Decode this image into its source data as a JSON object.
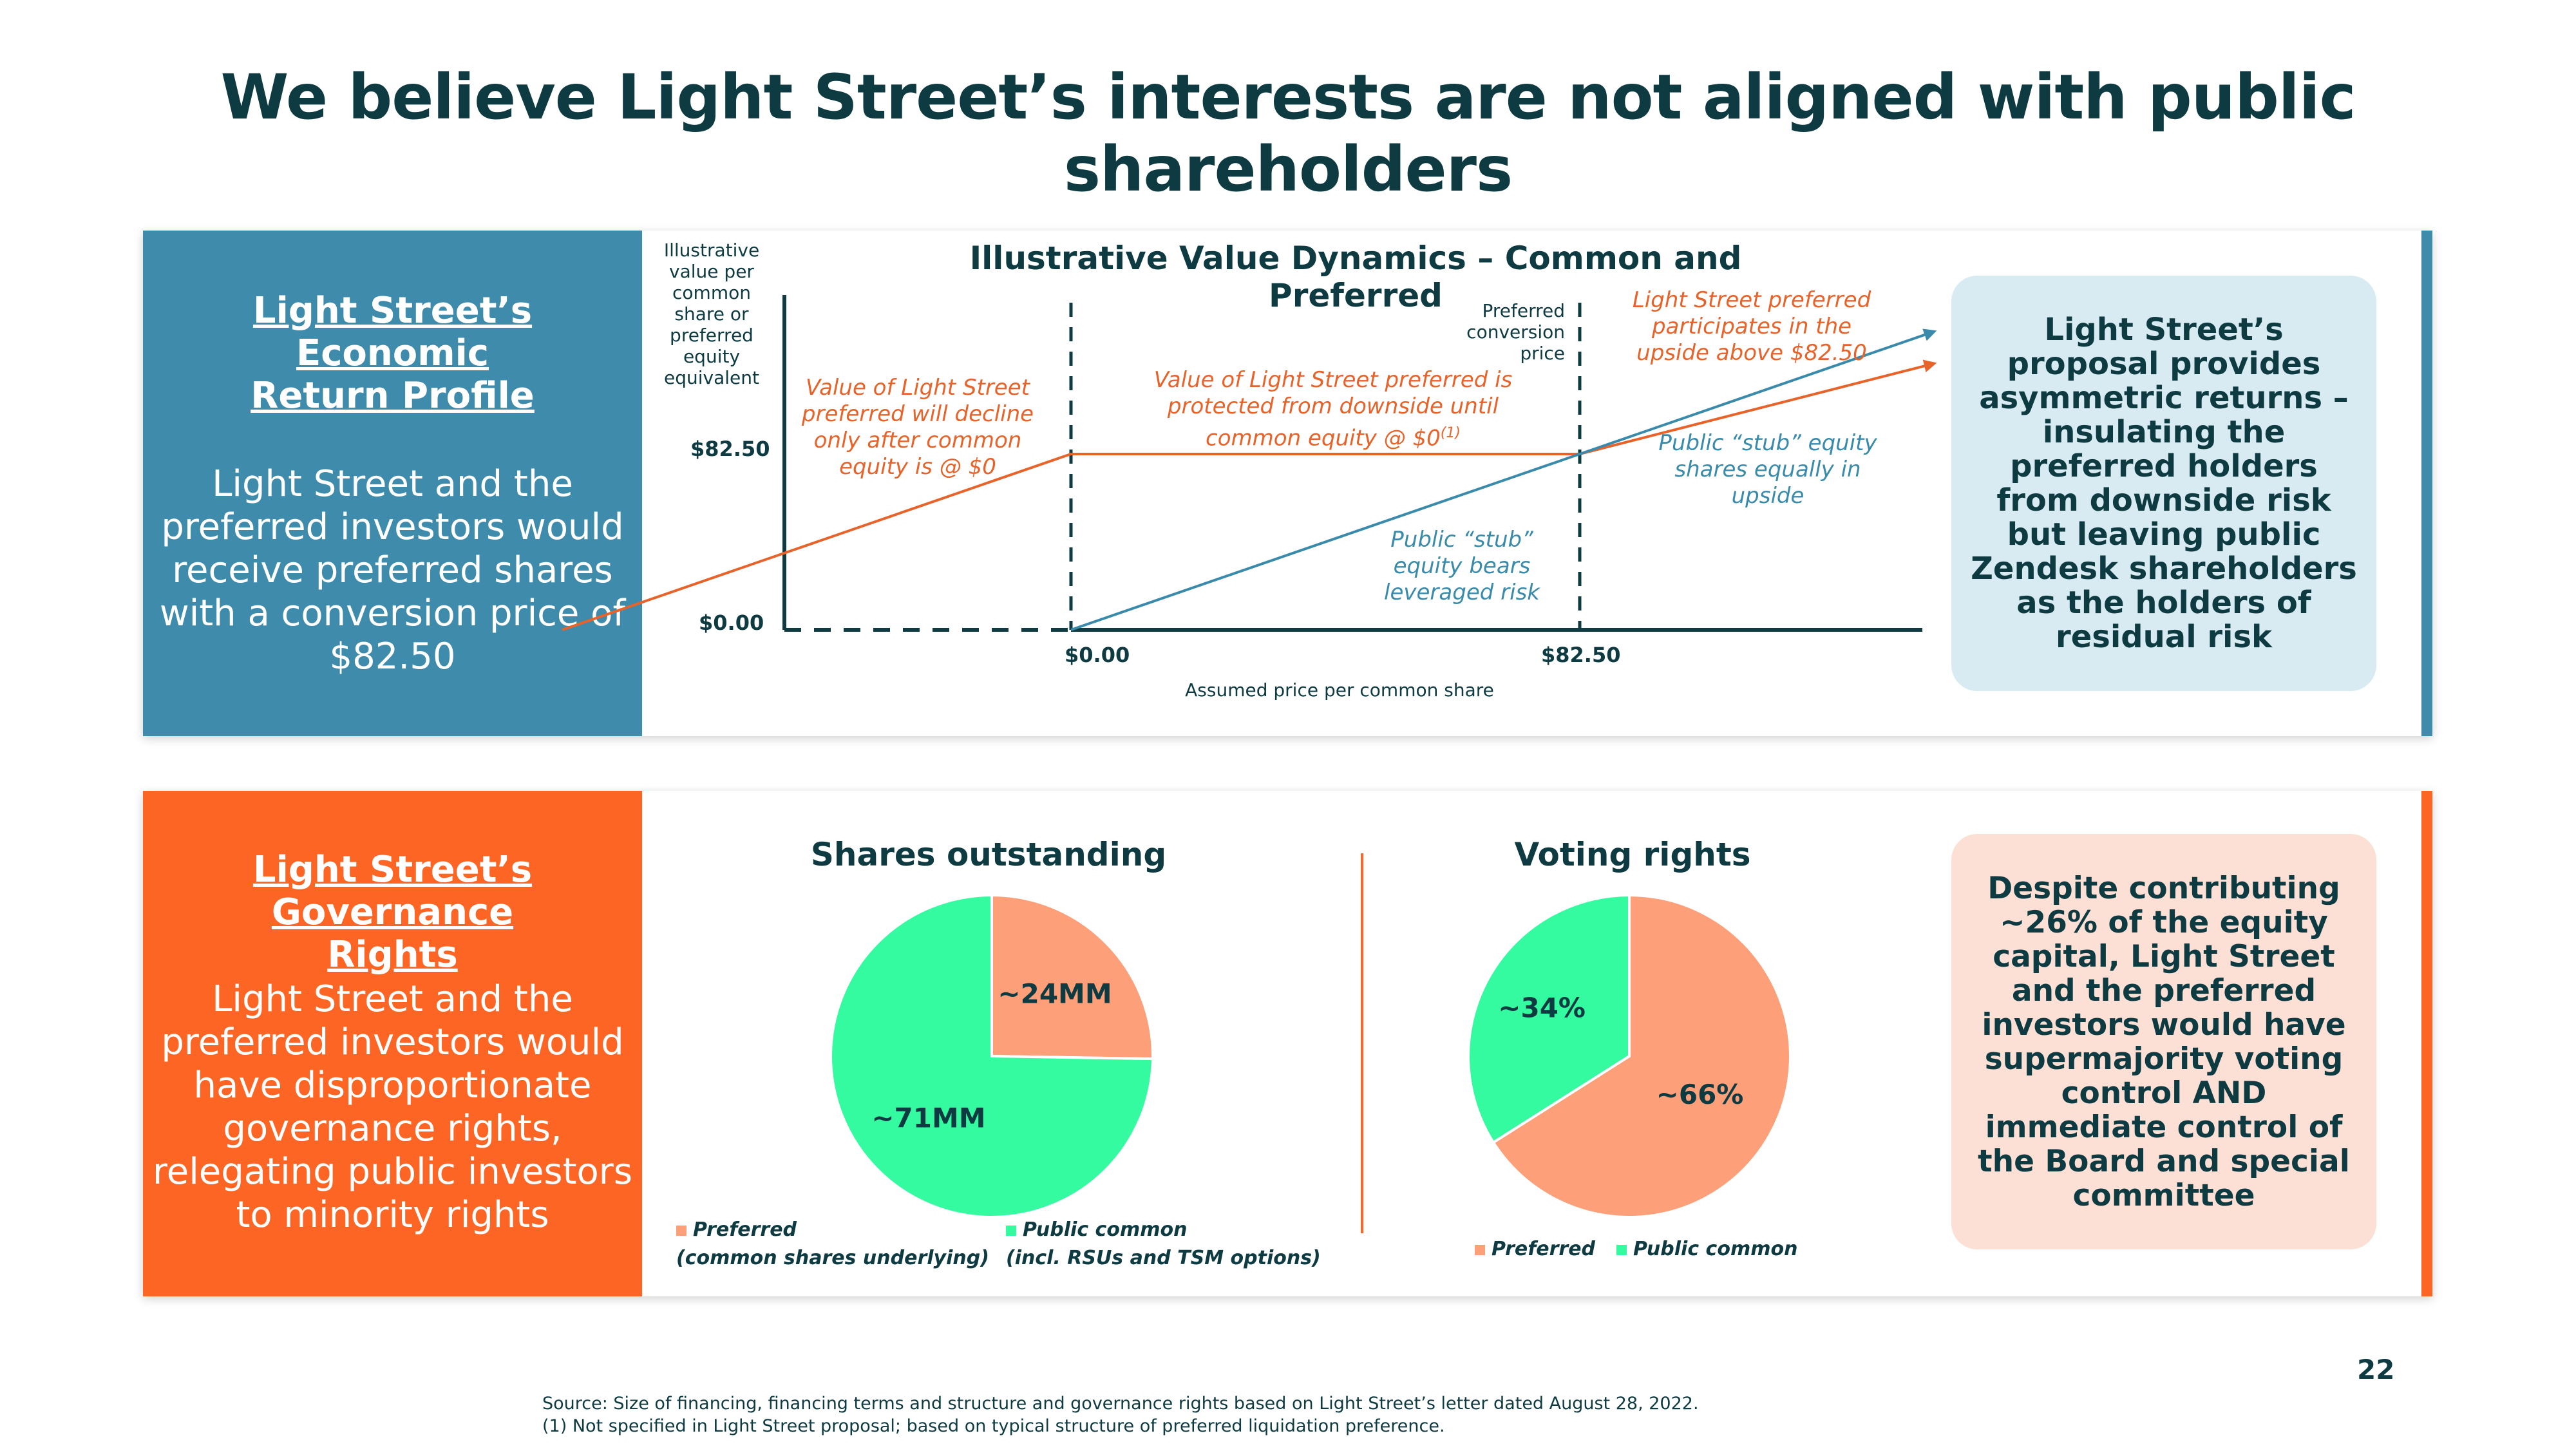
{
  "title": "We believe Light Street’s interests are not aligned with public shareholders",
  "colors": {
    "teal_dark": "#0e3a42",
    "blue": "#3f8bab",
    "orange": "#fd6524",
    "salmon": "#fda07a",
    "mint": "#34fba0",
    "callout_blue": "#d9ebf2",
    "callout_peach": "#fde0d5"
  },
  "economic": {
    "heading": "Light Street’s Economic Return Profile",
    "body": "Light Street and the preferred investors would receive preferred shares with a conversion price of $82.50",
    "callout": "Light Street’s proposal provides asymmetric returns – insulating the preferred holders from downside risk but leaving public Zendesk shareholders as the holders of residual risk"
  },
  "governance": {
    "heading": "Light Street’s Governance Rights",
    "body": "Light Street and the preferred investors would have disproportionate governance rights, relegating public investors to minority rights",
    "callout": "Despite contributing ~26% of the equity capital, Light Street and the preferred investors would have supermajority voting control AND immediate control of the Board and special committee"
  },
  "chart_data": [
    {
      "type": "line",
      "title": "Illustrative Value Dynamics – Common and Preferred",
      "ylabel": "Illustrative value per common share or preferred equity equivalent",
      "xlabel": "Assumed price per common share",
      "y_ticks": [
        "$82.50",
        "$0.00"
      ],
      "x_ticks": [
        "$0.00",
        "$82.50"
      ],
      "series": [
        {
          "name": "Light Street preferred",
          "color": "#e8632a",
          "points": [
            [
              -82.5,
              0
            ],
            [
              0,
              82.5
            ],
            [
              82.5,
              82.5
            ],
            [
              140,
              125
            ]
          ]
        },
        {
          "name": "Public stub equity",
          "color": "#3a8bab",
          "points": [
            [
              0,
              0
            ],
            [
              82.5,
              82.5
            ],
            [
              140,
              140
            ]
          ]
        }
      ],
      "reference_lines": [
        {
          "x": 0,
          "style": "dashed"
        },
        {
          "x": 82.5,
          "style": "dashed",
          "label": "Preferred conversion price"
        }
      ],
      "annotations": [
        "Value of Light Street preferred will decline only after common equity is @ $0",
        "Value of Light Street preferred is protected from downside until common equity @ $0",
        "Light Street preferred participates in the upside above $82.50",
        "Public “stub” equity shares equally in upside",
        "Public “stub” equity bears leveraged risk"
      ],
      "footnote_marker": "(1)"
    },
    {
      "type": "pie",
      "title": "Shares outstanding",
      "slices": [
        {
          "name": "Preferred",
          "sublabel": "(common shares underlying)",
          "value": 24,
          "label": "~24MM",
          "color": "#fda07a"
        },
        {
          "name": "Public common",
          "sublabel": "(incl. RSUs and TSM options)",
          "value": 71,
          "label": "~71MM",
          "color": "#34fba0"
        }
      ]
    },
    {
      "type": "pie",
      "title": "Voting rights",
      "slices": [
        {
          "name": "Preferred",
          "value": 66,
          "label": "~66%",
          "color": "#fda07a"
        },
        {
          "name": "Public common",
          "value": 34,
          "label": "~34%",
          "color": "#34fba0"
        }
      ]
    }
  ],
  "source": "Source:  Size of financing, financing terms and structure and governance rights based on Light Street’s letter dated August 28, 2022.",
  "footnote": "(1)  Not specified in Light Street proposal; based on typical structure of preferred liquidation preference.",
  "page_number": "22"
}
